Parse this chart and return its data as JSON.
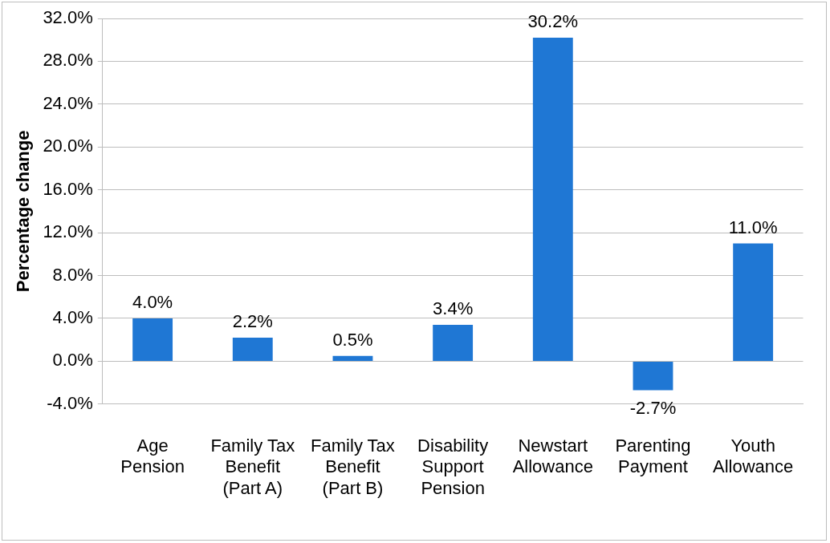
{
  "chart_data": {
    "type": "bar",
    "ylabel": "Percentage change",
    "categories": [
      "Age Pension",
      "Family Tax Benefit (Part A)",
      "Family Tax Benefit (Part B)",
      "Disability Support Pension",
      "Newstart Allowance",
      "Parenting Payment",
      "Youth Allowance"
    ],
    "values": [
      4.0,
      2.2,
      0.5,
      3.4,
      30.2,
      -2.7,
      11.0
    ],
    "value_labels": [
      "4.0%",
      "2.2%",
      "0.5%",
      "3.4%",
      "30.2%",
      "-2.7%",
      "11.0%"
    ],
    "color": "#1f77d4",
    "ylim": [
      -4,
      32
    ],
    "yticks": [
      {
        "value": -4,
        "label": "-4.0%"
      },
      {
        "value": 0,
        "label": "0.0%"
      },
      {
        "value": 4,
        "label": "4.0%"
      },
      {
        "value": 8,
        "label": "8.0%"
      },
      {
        "value": 12,
        "label": "12.0%"
      },
      {
        "value": 16,
        "label": "16.0%"
      },
      {
        "value": 20,
        "label": "20.0%"
      },
      {
        "value": 24,
        "label": "24.0%"
      },
      {
        "value": 28,
        "label": "28.0%"
      },
      {
        "value": 32,
        "label": "32.0%"
      }
    ],
    "grid": "y",
    "legend": false
  }
}
